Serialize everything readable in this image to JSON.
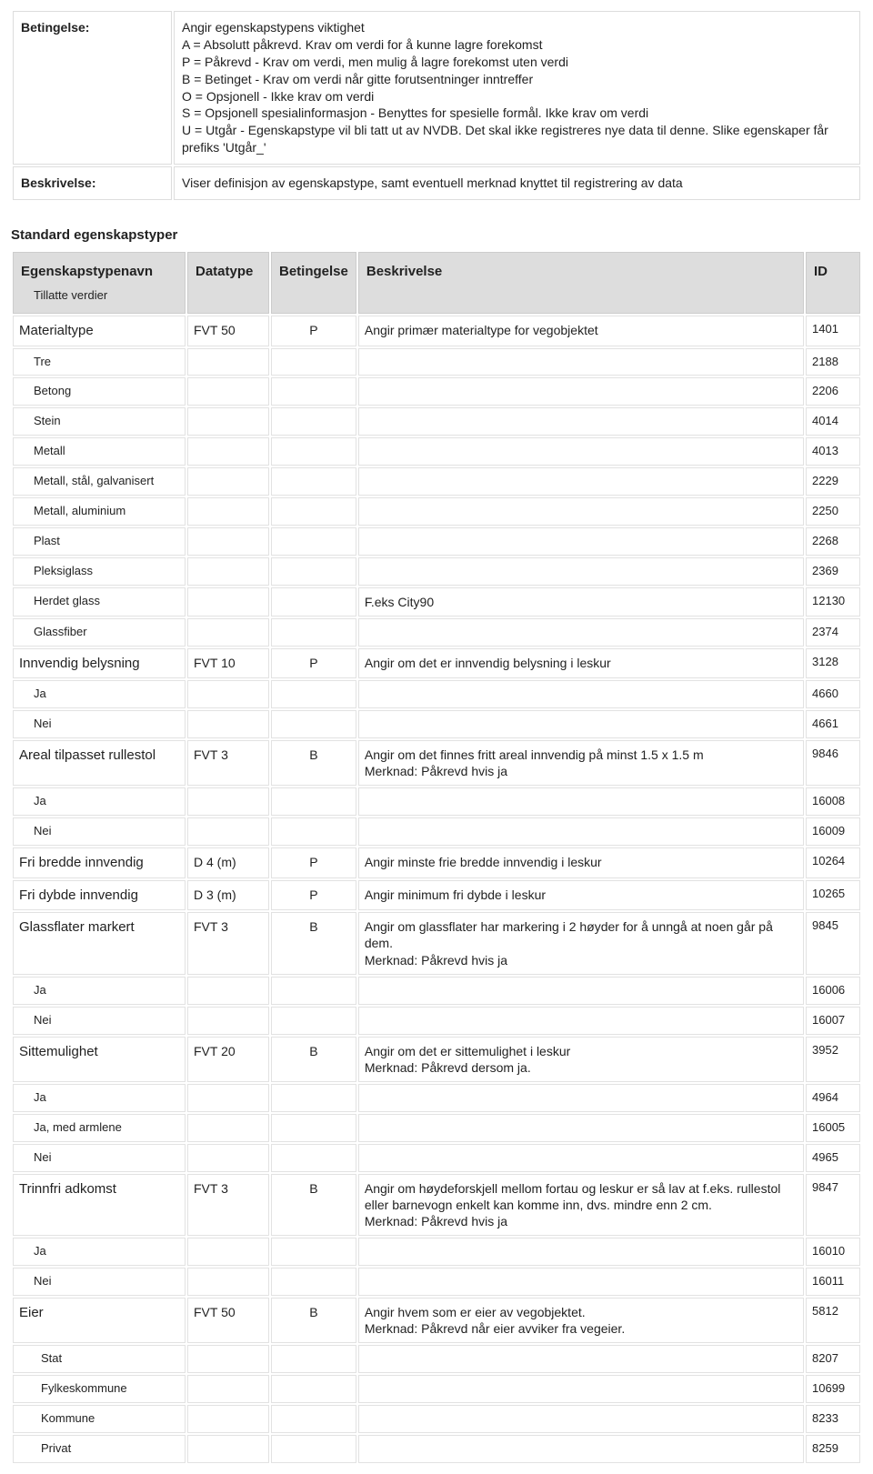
{
  "def_table": {
    "rows": [
      {
        "label": "Betingelse:",
        "value": "Angir egenskapstypens viktighet\nA = Absolutt påkrevd. Krav om verdi for å kunne lagre forekomst\nP = Påkrevd - Krav om verdi, men mulig å lagre forekomst uten verdi\nB = Betinget - Krav om verdi når gitte forutsentninger inntreffer\nO = Opsjonell - Ikke krav om verdi\nS = Opsjonell spesialinformasjon - Benyttes for spesielle formål. Ikke krav om verdi\nU = Utgår - Egenskapstype vil bli tatt ut av NVDB. Det skal ikke registreres nye data til denne. Slike egenskaper får prefiks 'Utgår_'"
      },
      {
        "label": "Beskrivelse:",
        "value": "Viser definisjon av egenskapstype, samt eventuell merknad knyttet til registrering av data"
      }
    ]
  },
  "section_title": "Standard egenskapstyper",
  "columns": {
    "name": "Egenskapstypenavn",
    "name_sub": "Tillatte verdier",
    "datatype": "Datatype",
    "betingelse": "Betingelse",
    "beskrivelse": "Beskrivelse",
    "id": "ID"
  },
  "rows": [
    {
      "level": 0,
      "name": "Materialtype",
      "datatype": "FVT 50",
      "bet": "P",
      "desc": "Angir primær materialtype for vegobjektet",
      "id": "1401"
    },
    {
      "level": 1,
      "name": "Tre",
      "datatype": "",
      "bet": "",
      "desc": "",
      "id": "2188"
    },
    {
      "level": 1,
      "name": "Betong",
      "datatype": "",
      "bet": "",
      "desc": "",
      "id": "2206"
    },
    {
      "level": 1,
      "name": "Stein",
      "datatype": "",
      "bet": "",
      "desc": "",
      "id": "4014"
    },
    {
      "level": 1,
      "name": "Metall",
      "datatype": "",
      "bet": "",
      "desc": "",
      "id": "4013"
    },
    {
      "level": 1,
      "name": "Metall, stål, galvanisert",
      "datatype": "",
      "bet": "",
      "desc": "",
      "id": "2229"
    },
    {
      "level": 1,
      "name": "Metall, aluminium",
      "datatype": "",
      "bet": "",
      "desc": "",
      "id": "2250"
    },
    {
      "level": 1,
      "name": "Plast",
      "datatype": "",
      "bet": "",
      "desc": "",
      "id": "2268"
    },
    {
      "level": 1,
      "name": "Pleksiglass",
      "datatype": "",
      "bet": "",
      "desc": "",
      "id": "2369"
    },
    {
      "level": 1,
      "name": "Herdet glass",
      "datatype": "",
      "bet": "",
      "desc": "F.eks City90",
      "id": "12130"
    },
    {
      "level": 1,
      "name": "Glassfiber",
      "datatype": "",
      "bet": "",
      "desc": "",
      "id": "2374"
    },
    {
      "level": 0,
      "name": "Innvendig belysning",
      "datatype": "FVT 10",
      "bet": "P",
      "desc": "Angir om det er innvendig belysning i leskur",
      "id": "3128"
    },
    {
      "level": 1,
      "name": "Ja",
      "datatype": "",
      "bet": "",
      "desc": "",
      "id": "4660"
    },
    {
      "level": 1,
      "name": "Nei",
      "datatype": "",
      "bet": "",
      "desc": "",
      "id": "4661"
    },
    {
      "level": 0,
      "name": "Areal tilpasset rullestol",
      "datatype": "FVT 3",
      "bet": "B",
      "desc": "Angir om det finnes fritt areal innvendig på minst 1.5 x 1.5 m\nMerknad: Påkrevd hvis ja",
      "id": "9846"
    },
    {
      "level": 1,
      "name": "Ja",
      "datatype": "",
      "bet": "",
      "desc": "",
      "id": "16008"
    },
    {
      "level": 1,
      "name": "Nei",
      "datatype": "",
      "bet": "",
      "desc": "",
      "id": "16009"
    },
    {
      "level": 0,
      "name": "Fri bredde innvendig",
      "datatype": "D 4 (m)",
      "bet": "P",
      "desc": "Angir minste frie bredde innvendig i leskur",
      "id": "10264"
    },
    {
      "level": 0,
      "name": "Fri dybde innvendig",
      "datatype": "D 3 (m)",
      "bet": "P",
      "desc": "Angir minimum fri dybde i leskur",
      "id": "10265"
    },
    {
      "level": 0,
      "name": "Glassflater markert",
      "datatype": "FVT 3",
      "bet": "B",
      "desc": "Angir om glassflater har markering i 2 høyder for å unngå at noen går på dem.\nMerknad: Påkrevd hvis ja",
      "id": "9845"
    },
    {
      "level": 1,
      "name": "Ja",
      "datatype": "",
      "bet": "",
      "desc": "",
      "id": "16006"
    },
    {
      "level": 1,
      "name": "Nei",
      "datatype": "",
      "bet": "",
      "desc": "",
      "id": "16007"
    },
    {
      "level": 0,
      "name": "Sittemulighet",
      "datatype": "FVT 20",
      "bet": "B",
      "desc": "Angir om det er sittemulighet i leskur\nMerknad: Påkrevd dersom ja.",
      "id": "3952"
    },
    {
      "level": 1,
      "name": "Ja",
      "datatype": "",
      "bet": "",
      "desc": "",
      "id": "4964"
    },
    {
      "level": 1,
      "name": "Ja, med armlene",
      "datatype": "",
      "bet": "",
      "desc": "",
      "id": "16005"
    },
    {
      "level": 1,
      "name": "Nei",
      "datatype": "",
      "bet": "",
      "desc": "",
      "id": "4965"
    },
    {
      "level": 0,
      "name": "Trinnfri adkomst",
      "datatype": "FVT 3",
      "bet": "B",
      "desc": "Angir om høydeforskjell mellom fortau og leskur er så lav at f.eks. rullestol eller barnevogn enkelt kan komme inn, dvs. mindre enn 2 cm.\nMerknad: Påkrevd hvis ja",
      "id": "9847"
    },
    {
      "level": 1,
      "name": "Ja",
      "datatype": "",
      "bet": "",
      "desc": "",
      "id": "16010"
    },
    {
      "level": 1,
      "name": "Nei",
      "datatype": "",
      "bet": "",
      "desc": "",
      "id": "16011"
    },
    {
      "level": 0,
      "name": "Eier",
      "datatype": "FVT 50",
      "bet": "B",
      "desc": "Angir hvem som er eier av vegobjektet.\nMerknad: Påkrevd når eier avviker fra vegeier.",
      "id": "5812"
    },
    {
      "level": 2,
      "name": "Stat",
      "datatype": "",
      "bet": "",
      "desc": "",
      "id": "8207"
    },
    {
      "level": 2,
      "name": "Fylkeskommune",
      "datatype": "",
      "bet": "",
      "desc": "",
      "id": "10699"
    },
    {
      "level": 2,
      "name": "Kommune",
      "datatype": "",
      "bet": "",
      "desc": "",
      "id": "8233"
    },
    {
      "level": 2,
      "name": "Privat",
      "datatype": "",
      "bet": "",
      "desc": "",
      "id": "8259"
    }
  ]
}
